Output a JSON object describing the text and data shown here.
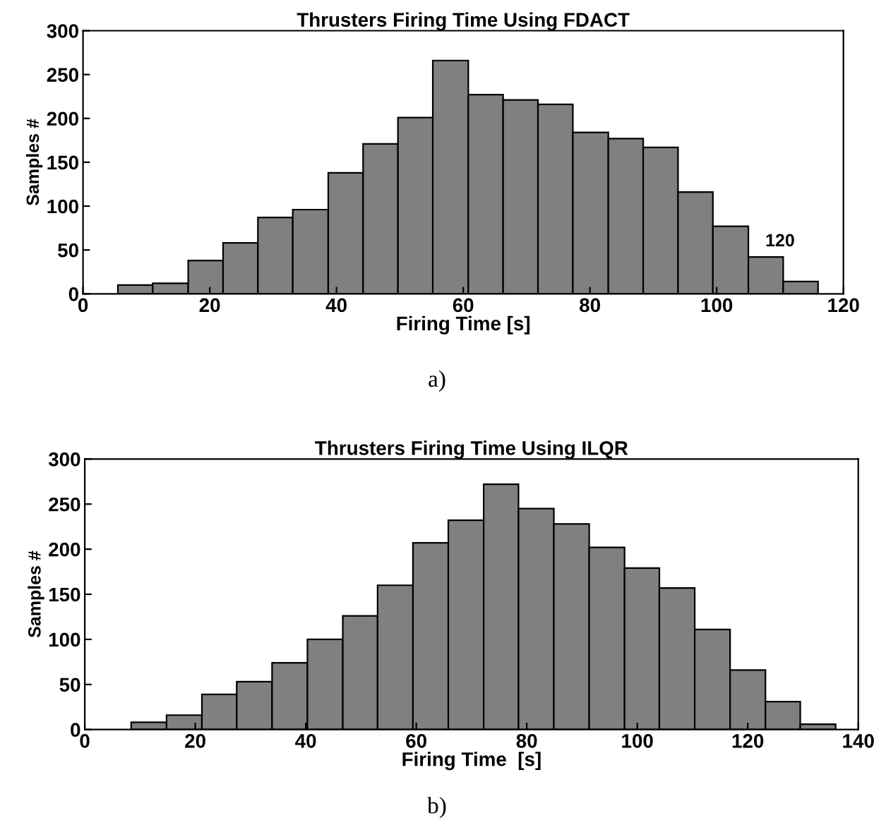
{
  "chart_data": [
    {
      "type": "histogram",
      "title": "Thrusters Firing Time Using FDACT",
      "xlabel": "Firing Time [s]",
      "ylabel": "Samples #",
      "color": "#808080",
      "bins": [
        5.5,
        11.0,
        16.6,
        22.1,
        27.6,
        33.1,
        38.7,
        44.2,
        49.7,
        55.2,
        60.8,
        66.3,
        71.8,
        77.3,
        82.9,
        88.4,
        93.9,
        99.4,
        105.0,
        110.5,
        116.0
      ],
      "values": [
        10,
        12,
        38,
        58,
        87,
        96,
        138,
        171,
        201,
        266,
        227,
        221,
        216,
        184,
        177,
        167,
        116,
        77,
        42,
        14
      ],
      "xlim": [
        0,
        120
      ],
      "xticks": [
        0,
        20,
        40,
        60,
        80,
        100,
        120
      ],
      "ylim": [
        0,
        300
      ],
      "yticks": [
        0,
        50,
        100,
        150,
        200,
        250,
        300
      ],
      "annotations": [
        {
          "text": "120",
          "x": 110,
          "y": 50
        },
        "a)"
      ]
    },
    {
      "type": "histogram",
      "title": "Thrusters Firing Time Using ILQR",
      "xlabel": "Firing Time  [s]",
      "ylabel": "Samples #",
      "color": "#808080",
      "bins": [
        8.4,
        14.8,
        21.2,
        27.5,
        33.9,
        40.3,
        46.7,
        53.0,
        59.4,
        65.8,
        72.2,
        78.5,
        84.9,
        91.3,
        97.7,
        104.0,
        110.4,
        116.8,
        123.2,
        129.5,
        135.9
      ],
      "values": [
        8,
        16,
        39,
        53,
        74,
        100,
        126,
        160,
        207,
        232,
        272,
        245,
        228,
        202,
        179,
        157,
        111,
        66,
        31,
        6
      ],
      "xlim": [
        0,
        140
      ],
      "xticks": [
        0,
        20,
        40,
        60,
        80,
        100,
        120,
        140
      ],
      "ylim": [
        0,
        300
      ],
      "yticks": [
        0,
        50,
        100,
        150,
        200,
        250,
        300
      ],
      "annotations": [
        "b)"
      ]
    }
  ]
}
